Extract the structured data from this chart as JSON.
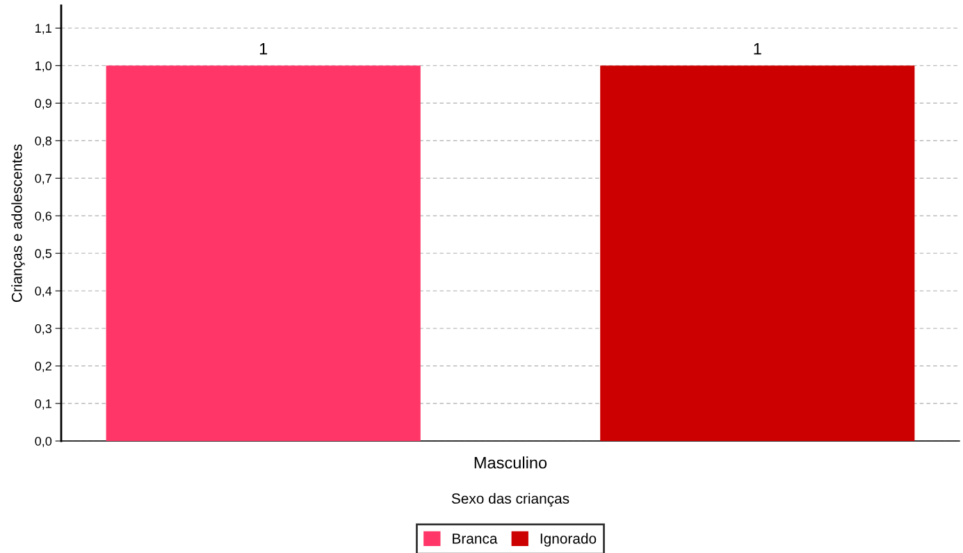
{
  "chart_data": {
    "type": "bar",
    "categories": [
      "Masculino"
    ],
    "xlabel": "Sexo das crianças",
    "ylabel": "Crianças e adolescentes",
    "series": [
      {
        "name": "Branca",
        "color": "#ff3667",
        "values": [
          1
        ]
      },
      {
        "name": "Ignorado",
        "color": "#cc0000",
        "values": [
          1
        ]
      }
    ],
    "ylim": [
      0,
      1.16
    ],
    "yticks": [
      {
        "value": 0,
        "label": "0,0"
      },
      {
        "value": 0.1,
        "label": "0,1"
      },
      {
        "value": 0.2,
        "label": "0,2"
      },
      {
        "value": 0.3,
        "label": "0,3"
      },
      {
        "value": 0.4,
        "label": "0,4"
      },
      {
        "value": 0.5,
        "label": "0,5"
      },
      {
        "value": 0.6,
        "label": "0,6"
      },
      {
        "value": 0.7,
        "label": "0,7"
      },
      {
        "value": 0.8,
        "label": "0,8"
      },
      {
        "value": 0.9,
        "label": "0,9"
      },
      {
        "value": 1.0,
        "label": "1,0"
      },
      {
        "value": 1.1,
        "label": "1,1"
      }
    ],
    "grid": "y",
    "legend": "bottom",
    "data_labels": true
  }
}
